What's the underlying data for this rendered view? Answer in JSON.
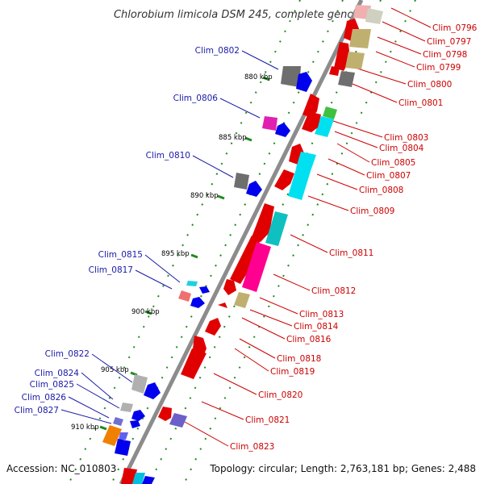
{
  "title": "Chlorobium limicola DSM 245, complete genome",
  "accession_text": "Accession: NC_010803",
  "topology_text": "Topology: circular; Length: 2,763,181 bp; Genes: 2,488",
  "colors": {
    "backbone": "#8c8c8c",
    "tick_dots": "#1f8a1f",
    "label_blue": "#1a1aa8",
    "label_red": "#cc0000",
    "strand_plus_red": "#e00000"
  },
  "scale_labels": [
    "880 kbp",
    "885 kbp",
    "890 kbp",
    "895 kbp",
    "900 kbp",
    "905 kbp",
    "910 kbp"
  ],
  "left_labels": [
    "Clim_0802",
    "Clim_0806",
    "Clim_0810",
    "Clim_0815",
    "Clim_0817",
    "Clim_0822",
    "Clim_0824",
    "Clim_0825",
    "Clim_0826",
    "Clim_0827"
  ],
  "right_labels": [
    "Clim_0796",
    "Clim_0797",
    "Clim_0798",
    "Clim_0799",
    "Clim_0800",
    "Clim_0801",
    "Clim_0803",
    "Clim_0804",
    "Clim_0805",
    "Clim_0807",
    "Clim_0808",
    "Clim_0809",
    "Clim_0811",
    "Clim_0812",
    "Clim_0813",
    "Clim_0814",
    "Clim_0816",
    "Clim_0818",
    "Clim_0819",
    "Clim_0820",
    "Clim_0821",
    "Clim_0823"
  ]
}
